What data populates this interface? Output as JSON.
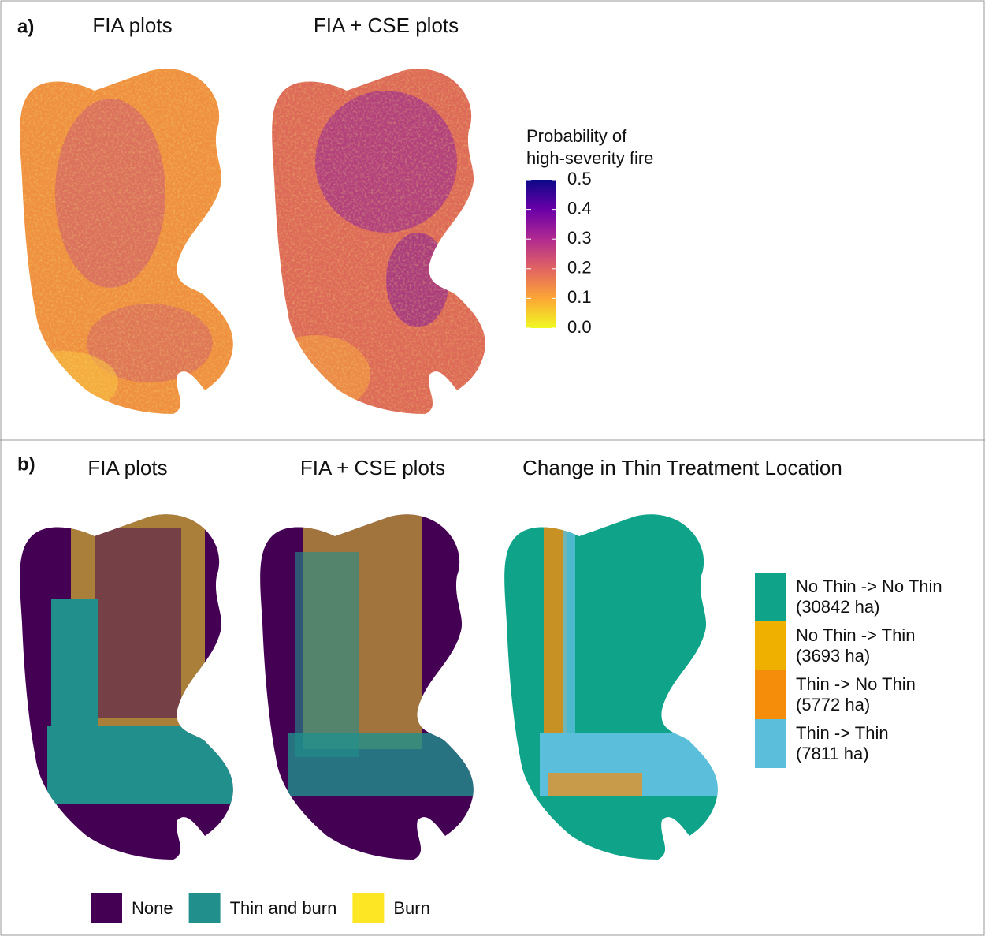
{
  "panels": [
    {
      "label": "a)",
      "maps": [
        {
          "title": "FIA plots"
        },
        {
          "title": "FIA + CSE plots"
        }
      ],
      "legend": {
        "title": [
          "Probability of",
          "high-severity fire"
        ],
        "range": [
          0,
          0.5
        ],
        "ticks": [
          {
            "value": 0.5,
            "label": "0.5"
          },
          {
            "value": 0.4,
            "label": "0.4"
          },
          {
            "value": 0.3,
            "label": "0.3"
          },
          {
            "value": 0.2,
            "label": "0.2"
          },
          {
            "value": 0.1,
            "label": "0.1"
          },
          {
            "value": 0,
            "label": "0.0"
          }
        ]
      }
    },
    {
      "label": "b)",
      "maps": [
        {
          "title": "FIA plots"
        },
        {
          "title": "FIA + CSE plots"
        },
        {
          "title": "Change in Thin Treatment Location"
        }
      ],
      "legend": {
        "entries": [
          {
            "label": "No Thin -> No Thin",
            "area": "(30842 ha)",
            "color": "#0fa38a"
          },
          {
            "label": "No Thin -> Thin",
            "area": "(3693 ha)",
            "color": "#f0b000"
          },
          {
            "label": "Thin -> No Thin",
            "area": "(5772 ha)",
            "color": "#f58c0a"
          },
          {
            "label": "Thin -> Thin",
            "area": "(7811 ha)",
            "color": "#5bbfdc"
          }
        ]
      },
      "bottom_legend": {
        "entries": [
          {
            "label": "None",
            "color": "#440154"
          },
          {
            "label": "Thin and burn",
            "color": "#21908c"
          },
          {
            "label": "Burn",
            "color": "#fde725"
          }
        ]
      }
    }
  ]
}
